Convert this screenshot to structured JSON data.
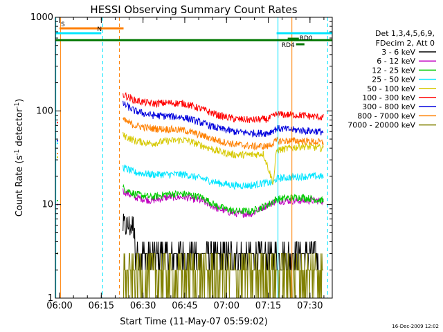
{
  "chart_data": {
    "type": "line",
    "title": "HESSI Observing Summary Count Rates",
    "xlabel": "Start Time (11-May-07 05:59:02)",
    "ylabel_main": "Count Rate (s",
    "ylabel_sup1": "-1",
    "ylabel_mid": " detector",
    "ylabel_sup2": "-1",
    "ylabel_end": ")",
    "y_scale": "log",
    "ylim": [
      1,
      1000
    ],
    "xlim": [
      "05:58:30",
      "07:38:00"
    ],
    "x_ticks": [
      "06:00",
      "06:15",
      "06:30",
      "06:45",
      "07:00",
      "07:15",
      "07:30"
    ],
    "y_ticks": [
      "1",
      "10",
      "100",
      "1000"
    ],
    "legend_header": [
      "Det 1,3,4,5,6,9,",
      "FDecim 2, Att 0"
    ],
    "legend_position": "right",
    "series": [
      {
        "name": "3 - 6 keV",
        "color": "#000000",
        "samples": [
          [
            6.38,
            6.5
          ],
          [
            6.45,
            5
          ],
          [
            6.5,
            4
          ],
          [
            6.6,
            3
          ],
          [
            6.7,
            2.8
          ],
          [
            6.85,
            2.7
          ],
          [
            7.0,
            2.6
          ],
          [
            7.15,
            2.5
          ],
          [
            7.25,
            2.4
          ],
          [
            7.35,
            2.5
          ],
          [
            7.45,
            2.5
          ],
          [
            7.55,
            2.6
          ]
        ]
      },
      {
        "name": "6 - 12 keV",
        "color": "#c000c0",
        "samples": [
          [
            6.38,
            14
          ],
          [
            6.45,
            12
          ],
          [
            6.55,
            11
          ],
          [
            6.65,
            12
          ],
          [
            6.75,
            12
          ],
          [
            6.85,
            11
          ],
          [
            6.95,
            9
          ],
          [
            7.05,
            8
          ],
          [
            7.15,
            8
          ],
          [
            7.25,
            10
          ],
          [
            7.3,
            11
          ],
          [
            7.45,
            11
          ],
          [
            7.58,
            11
          ]
        ]
      },
      {
        "name": "12 - 25 keV",
        "color": "#00cc00",
        "samples": [
          [
            6.38,
            15
          ],
          [
            6.45,
            13
          ],
          [
            6.55,
            12
          ],
          [
            6.65,
            13
          ],
          [
            6.75,
            13
          ],
          [
            6.85,
            12
          ],
          [
            6.95,
            9.5
          ],
          [
            7.05,
            8.5
          ],
          [
            7.15,
            8.5
          ],
          [
            7.25,
            10
          ],
          [
            7.3,
            11.5
          ],
          [
            7.45,
            12
          ],
          [
            7.58,
            11
          ]
        ]
      },
      {
        "name": "25 - 50 keV",
        "color": "#00e5ff",
        "samples": [
          [
            6.38,
            25
          ],
          [
            6.45,
            22
          ],
          [
            6.55,
            21
          ],
          [
            6.65,
            21
          ],
          [
            6.75,
            21
          ],
          [
            6.85,
            19
          ],
          [
            6.95,
            17
          ],
          [
            7.05,
            16
          ],
          [
            7.15,
            16
          ],
          [
            7.22,
            17
          ],
          [
            7.28,
            17
          ],
          [
            7.3,
            19
          ],
          [
            7.45,
            20
          ],
          [
            7.58,
            20
          ]
        ]
      },
      {
        "name": "50 - 100 keV",
        "color": "#d6c800",
        "samples": [
          [
            6.38,
            55
          ],
          [
            6.45,
            48
          ],
          [
            6.55,
            45
          ],
          [
            6.65,
            48
          ],
          [
            6.75,
            49
          ],
          [
            6.85,
            43
          ],
          [
            6.95,
            37
          ],
          [
            7.05,
            34
          ],
          [
            7.15,
            34
          ],
          [
            7.22,
            35
          ],
          [
            7.28,
            17
          ],
          [
            7.3,
            38
          ],
          [
            7.45,
            42
          ],
          [
            7.58,
            40
          ]
        ]
      },
      {
        "name": "100 - 300 keV",
        "color": "#ff0000",
        "samples": [
          [
            6.38,
            150
          ],
          [
            6.45,
            130
          ],
          [
            6.55,
            120
          ],
          [
            6.65,
            122
          ],
          [
            6.75,
            120
          ],
          [
            6.85,
            105
          ],
          [
            6.95,
            90
          ],
          [
            7.05,
            82
          ],
          [
            7.15,
            80
          ],
          [
            7.25,
            82
          ],
          [
            7.3,
            92
          ],
          [
            7.45,
            90
          ],
          [
            7.58,
            85
          ]
        ]
      },
      {
        "name": "300 - 800 keV",
        "color": "#0000dd",
        "samples": [
          [
            6.38,
            120
          ],
          [
            6.45,
            100
          ],
          [
            6.55,
            90
          ],
          [
            6.65,
            88
          ],
          [
            6.75,
            85
          ],
          [
            6.85,
            75
          ],
          [
            6.95,
            65
          ],
          [
            7.05,
            60
          ],
          [
            7.15,
            58
          ],
          [
            7.25,
            58
          ],
          [
            7.3,
            65
          ],
          [
            7.45,
            62
          ],
          [
            7.58,
            60
          ]
        ]
      },
      {
        "name": "800 - 7000 keV",
        "color": "#ff8000",
        "samples": [
          [
            6.38,
            80
          ],
          [
            6.45,
            70
          ],
          [
            6.55,
            65
          ],
          [
            6.65,
            64
          ],
          [
            6.75,
            62
          ],
          [
            6.85,
            55
          ],
          [
            6.95,
            48
          ],
          [
            7.05,
            44
          ],
          [
            7.15,
            42
          ],
          [
            7.25,
            42
          ],
          [
            7.3,
            48
          ],
          [
            7.45,
            48
          ],
          [
            7.58,
            46
          ]
        ]
      },
      {
        "name": "7000 - 20000 keV",
        "color": "#808000",
        "samples": [
          [
            6.38,
            2
          ],
          [
            6.5,
            1.5
          ],
          [
            6.65,
            2
          ],
          [
            6.8,
            2.5
          ],
          [
            6.95,
            2
          ],
          [
            7.05,
            2.5
          ],
          [
            7.2,
            2
          ],
          [
            7.35,
            2.5
          ],
          [
            7.5,
            2.5
          ],
          [
            7.58,
            2.5
          ]
        ]
      }
    ],
    "flag_bars": [
      {
        "label": "S",
        "color": "#ff8000",
        "x_start": "06:00",
        "x_end": "06:23"
      },
      {
        "label": "N",
        "color": "#00e5ff",
        "x_start": "05:58:30",
        "x_end": "06:15"
      },
      {
        "label": "",
        "color": "#00e5ff",
        "x_start": "07:18",
        "x_end": "07:38"
      },
      {
        "label": "",
        "color": "#007700",
        "x_start": "05:58:30",
        "x_end": "07:38"
      },
      {
        "label": "RD0",
        "color": "#007700",
        "x_start": "07:22",
        "x_end": "07:26"
      },
      {
        "label": "RD4",
        "color": "#007700",
        "x_start": "07:25",
        "x_end": "07:28"
      }
    ]
  },
  "colors": {
    "background": "#ffffff",
    "axis": "#000000",
    "cyan_marker": "#00e5ff",
    "orange_marker": "#ff8000"
  },
  "timestamp": "16-Dec-2009 12:02"
}
